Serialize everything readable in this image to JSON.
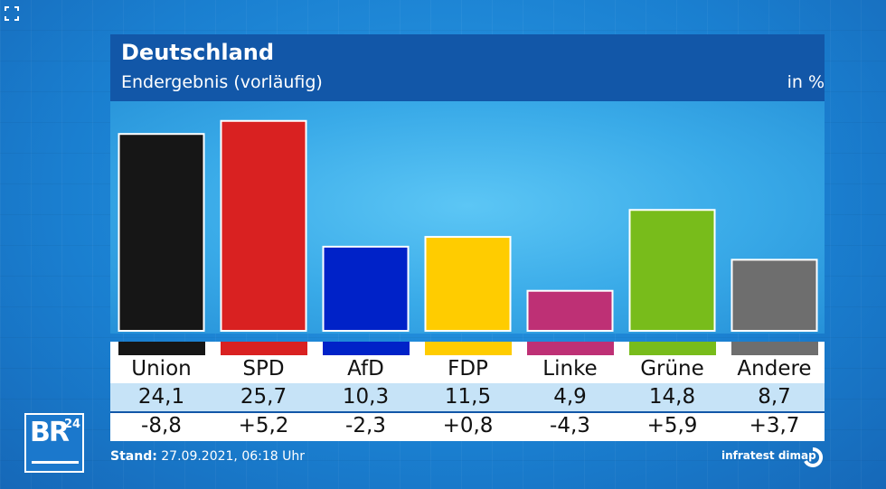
{
  "header": {
    "title": "Deutschland",
    "subtitle": "Endergebnis (vorläufig)",
    "unit": "in %"
  },
  "chart_data": {
    "type": "bar",
    "title": "Deutschland",
    "subtitle": "Endergebnis (vorläufig)",
    "unit": "in %",
    "categories": [
      "Union",
      "SPD",
      "AfD",
      "FDP",
      "Linke",
      "Grüne",
      "Andere"
    ],
    "values": [
      24.1,
      25.7,
      10.3,
      11.5,
      4.9,
      14.8,
      8.7
    ],
    "value_labels": [
      "24,1",
      "25,7",
      "10,3",
      "11,5",
      "4,9",
      "14,8",
      "8,7"
    ],
    "changes": [
      "-8,8",
      "+5,2",
      "-2,3",
      "+0,8",
      "-4,3",
      "+5,9",
      "+3,7"
    ],
    "colors": [
      "#161616",
      "#d92121",
      "#0022c8",
      "#ffcc00",
      "#be3075",
      "#78bc1b",
      "#6e6e6e"
    ],
    "ylim": [
      0,
      27
    ],
    "grid": false
  },
  "footer": {
    "stand_label": "Stand:",
    "stand_value": "27.09.2021, 06:18 Uhr",
    "source": "infratest dimap"
  },
  "logo": {
    "br_text": "BR",
    "br_num": "24"
  }
}
